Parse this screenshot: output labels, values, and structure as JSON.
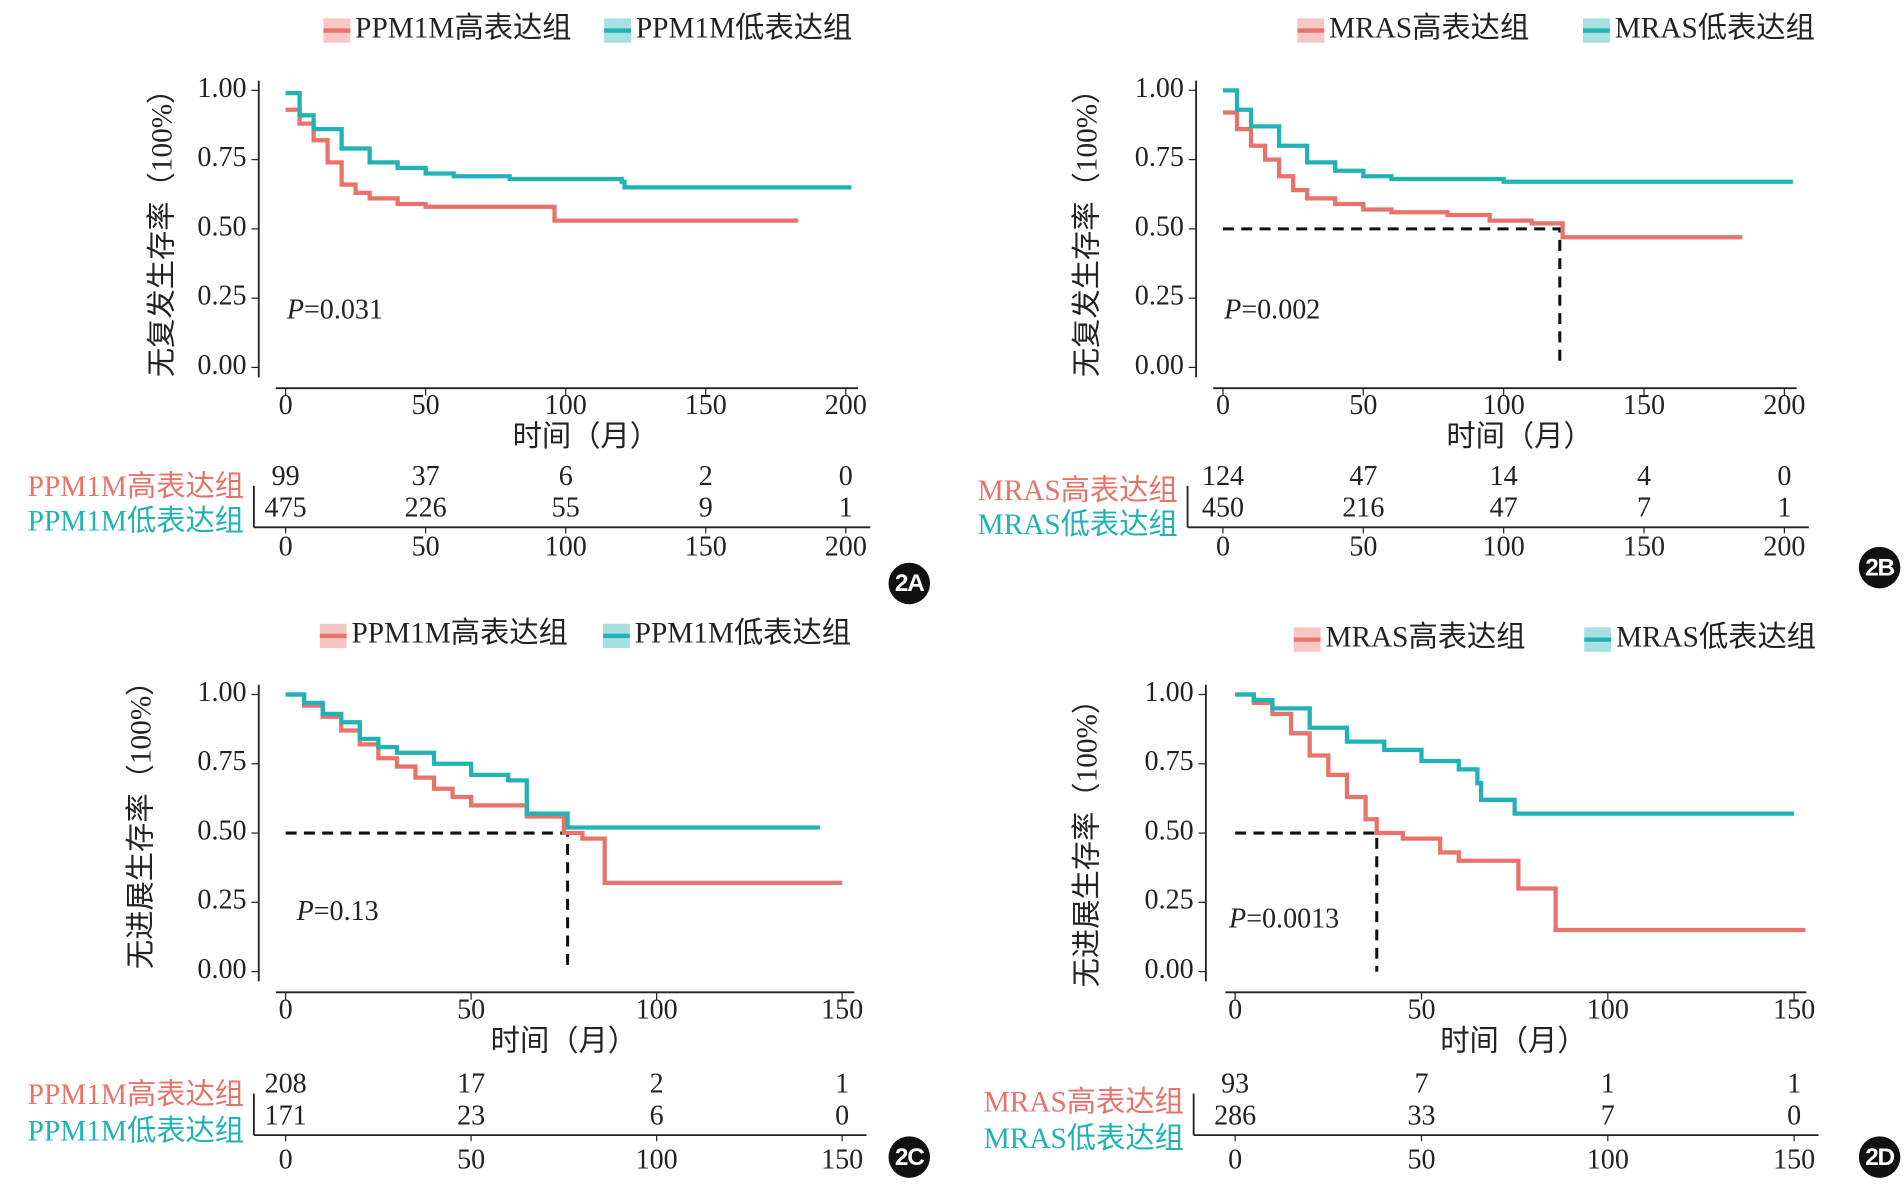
{
  "chart_data": [
    {
      "type": "line",
      "panel_label": "2A",
      "ylabel": "无复发生存率（100%）",
      "xlabel": "时间（月）",
      "p_symbol": "P",
      "p_text": "=0.031",
      "xlim": [
        0,
        200
      ],
      "xticks": [
        0,
        50,
        100,
        150,
        200
      ],
      "ylim": [
        0,
        1
      ],
      "yticks": [
        {
          "value": 0,
          "label": "0.00"
        },
        {
          "value": 0.25,
          "label": "0.25"
        },
        {
          "value": 0.5,
          "label": "0.50"
        },
        {
          "value": 0.75,
          "label": "0.75"
        },
        {
          "value": 1,
          "label": "1.00"
        }
      ],
      "series": [
        {
          "name": "PPM1M高表达组",
          "color": "#e8736b",
          "x": [
            0,
            5,
            10,
            15,
            20,
            25,
            30,
            40,
            50,
            60,
            95,
            96,
            183
          ],
          "values": [
            0.93,
            0.88,
            0.82,
            0.74,
            0.66,
            0.63,
            0.61,
            0.59,
            0.58,
            0.58,
            0.58,
            0.53,
            0.53
          ]
        },
        {
          "name": "PPM1M低表达组",
          "color": "#20b2b4",
          "x": [
            0,
            5,
            10,
            20,
            30,
            40,
            50,
            60,
            80,
            120,
            121,
            202
          ],
          "values": [
            0.99,
            0.91,
            0.86,
            0.79,
            0.74,
            0.72,
            0.7,
            0.69,
            0.68,
            0.67,
            0.65,
            0.65
          ]
        }
      ],
      "risk_table": [
        [
          99,
          37,
          6,
          2,
          0
        ],
        [
          475,
          226,
          55,
          9,
          1
        ]
      ]
    },
    {
      "type": "line",
      "panel_label": "2B",
      "ylabel": "无复发生存率（100%）",
      "xlabel": "时间（月）",
      "p_symbol": "P",
      "p_text": "=0.002",
      "xlim": [
        0,
        200
      ],
      "xticks": [
        0,
        50,
        100,
        150,
        200
      ],
      "ylim": [
        0,
        1
      ],
      "yticks": [
        {
          "value": 0,
          "label": "0.00"
        },
        {
          "value": 0.25,
          "label": "0.25"
        },
        {
          "value": 0.5,
          "label": "0.50"
        },
        {
          "value": 0.75,
          "label": "0.75"
        },
        {
          "value": 1,
          "label": "1.00"
        }
      ],
      "median": [
        0.5,
        120
      ],
      "series": [
        {
          "name": "MRAS高表达组",
          "color": "#e8736b",
          "x": [
            0,
            5,
            10,
            15,
            20,
            25,
            30,
            40,
            50,
            60,
            80,
            95,
            110,
            120,
            121,
            185
          ],
          "values": [
            0.92,
            0.86,
            0.8,
            0.75,
            0.69,
            0.64,
            0.61,
            0.59,
            0.57,
            0.56,
            0.55,
            0.53,
            0.52,
            0.52,
            0.47,
            0.47
          ]
        },
        {
          "name": "MRAS低表达组",
          "color": "#20b2b4",
          "x": [
            0,
            5,
            10,
            20,
            30,
            40,
            50,
            60,
            80,
            100,
            203
          ],
          "values": [
            1,
            0.93,
            0.87,
            0.8,
            0.74,
            0.71,
            0.69,
            0.68,
            0.68,
            0.67,
            0.67
          ]
        }
      ],
      "risk_table": [
        [
          124,
          47,
          14,
          4,
          0
        ],
        [
          450,
          216,
          47,
          7,
          1
        ]
      ]
    },
    {
      "type": "line",
      "panel_label": "2C",
      "ylabel": "无进展生存率（100%）",
      "xlabel": "时间（月）",
      "p_symbol": "P",
      "p_text": "=0.13",
      "xlim": [
        0,
        150
      ],
      "xticks": [
        0,
        50,
        100,
        150
      ],
      "ylim": [
        0,
        1
      ],
      "yticks": [
        {
          "value": 0,
          "label": "0.00"
        },
        {
          "value": 0.25,
          "label": "0.25"
        },
        {
          "value": 0.5,
          "label": "0.50"
        },
        {
          "value": 0.75,
          "label": "0.75"
        },
        {
          "value": 1,
          "label": "1.00"
        }
      ],
      "median": [
        0.5,
        76
      ],
      "series": [
        {
          "name": "PPM1M高表达组",
          "color": "#e8736b",
          "x": [
            0,
            5,
            10,
            15,
            20,
            25,
            30,
            35,
            40,
            45,
            50,
            60,
            65,
            70,
            75,
            80,
            85,
            86,
            150
          ],
          "values": [
            1,
            0.96,
            0.92,
            0.87,
            0.82,
            0.77,
            0.74,
            0.7,
            0.66,
            0.63,
            0.6,
            0.6,
            0.56,
            0.56,
            0.5,
            0.48,
            0.48,
            0.32,
            0.32
          ]
        },
        {
          "name": "PPM1M低表达组",
          "color": "#20b2b4",
          "x": [
            0,
            5,
            10,
            15,
            20,
            25,
            30,
            40,
            50,
            60,
            64,
            65,
            75,
            76,
            144
          ],
          "values": [
            1,
            0.97,
            0.93,
            0.9,
            0.84,
            0.81,
            0.79,
            0.75,
            0.71,
            0.69,
            0.69,
            0.57,
            0.57,
            0.52,
            0.52
          ]
        }
      ],
      "risk_table": [
        [
          208,
          17,
          2,
          1
        ],
        [
          171,
          23,
          6,
          0
        ]
      ]
    },
    {
      "type": "line",
      "panel_label": "2D",
      "ylabel": "无进展生存率（100%）",
      "xlabel": "时间（月）",
      "p_symbol": "P",
      "p_text": "=0.0013",
      "xlim": [
        0,
        150
      ],
      "xticks": [
        0,
        50,
        100,
        150
      ],
      "ylim": [
        0,
        1
      ],
      "yticks": [
        {
          "value": 0,
          "label": "0.00"
        },
        {
          "value": 0.25,
          "label": "0.25"
        },
        {
          "value": 0.5,
          "label": "0.50"
        },
        {
          "value": 0.75,
          "label": "0.75"
        },
        {
          "value": 1,
          "label": "1.00"
        }
      ],
      "median": [
        0.5,
        38
      ],
      "series": [
        {
          "name": "MRAS高表达组",
          "color": "#e8736b",
          "x": [
            0,
            5,
            10,
            15,
            20,
            25,
            30,
            35,
            38,
            45,
            55,
            60,
            75,
            76,
            85,
            86,
            153
          ],
          "values": [
            1,
            0.97,
            0.93,
            0.86,
            0.78,
            0.71,
            0.63,
            0.55,
            0.5,
            0.48,
            0.43,
            0.4,
            0.4,
            0.3,
            0.3,
            0.15,
            0.15
          ]
        },
        {
          "name": "MRAS低表达组",
          "color": "#20b2b4",
          "x": [
            0,
            5,
            10,
            20,
            30,
            40,
            50,
            60,
            65,
            66,
            75,
            150
          ],
          "values": [
            1,
            0.98,
            0.95,
            0.88,
            0.83,
            0.8,
            0.76,
            0.73,
            0.68,
            0.62,
            0.57,
            0.57
          ]
        }
      ],
      "risk_table": [
        [
          93,
          7,
          1,
          1
        ],
        [
          286,
          33,
          7,
          0
        ]
      ]
    }
  ]
}
